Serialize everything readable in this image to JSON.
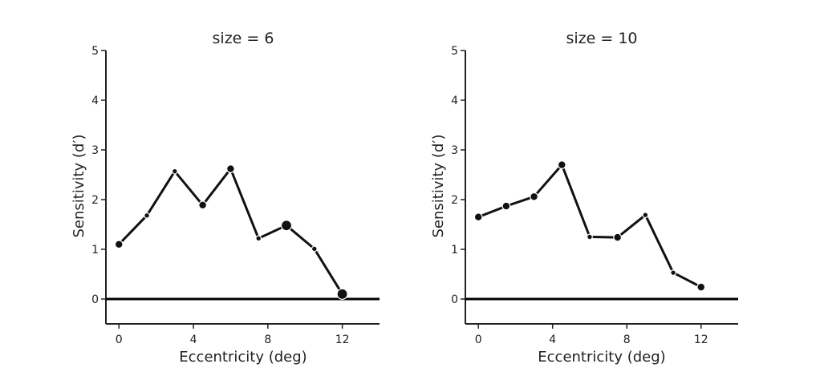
{
  "chart_data": [
    {
      "type": "line",
      "title": "size = 6",
      "xlabel": "Eccentricity (deg)",
      "ylabel": "Sensitivity (d′)",
      "xlim": [
        -0.7,
        14
      ],
      "ylim": [
        -0.5,
        5
      ],
      "xticks": [
        0,
        4,
        8,
        12
      ],
      "yticks": [
        0,
        1,
        2,
        3,
        4,
        5
      ],
      "reference_line_y": 0,
      "grid": false,
      "line_color": "#111111",
      "x": [
        0,
        1.5,
        3,
        4.5,
        6,
        7.5,
        9,
        10.5,
        12
      ],
      "values": [
        1.1,
        1.68,
        2.57,
        1.89,
        2.62,
        1.22,
        1.48,
        1.01,
        0.1
      ],
      "marker_weight": [
        2,
        1,
        1,
        2,
        2,
        1,
        3,
        1,
        3
      ]
    },
    {
      "type": "line",
      "title": "size = 10",
      "xlabel": "Eccentricity (deg)",
      "ylabel": "Sensitivity (d′)",
      "xlim": [
        -0.7,
        14
      ],
      "ylim": [
        -0.5,
        5
      ],
      "xticks": [
        0,
        4,
        8,
        12
      ],
      "yticks": [
        0,
        1,
        2,
        3,
        4,
        5
      ],
      "reference_line_y": 0,
      "grid": false,
      "line_color": "#111111",
      "x": [
        0,
        1.5,
        3,
        4.5,
        6,
        7.5,
        9,
        10.5,
        12
      ],
      "values": [
        1.65,
        1.87,
        2.06,
        2.7,
        1.25,
        1.24,
        1.69,
        0.53,
        0.24
      ],
      "marker_weight": [
        2,
        2,
        2,
        2,
        1,
        2,
        1,
        1,
        2
      ]
    }
  ]
}
